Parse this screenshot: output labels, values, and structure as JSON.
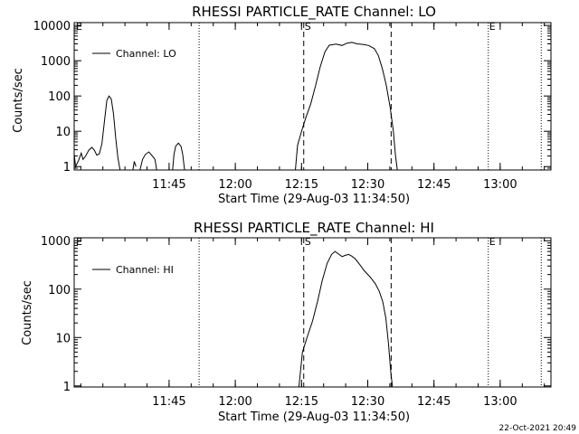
{
  "chart_data": [
    {
      "type": "line",
      "id": "lo",
      "title": "RHESSI PARTICLE_RATE Channel: LO",
      "xlabel": "Start Time (29-Aug-03 11:34:50)",
      "ylabel": "Counts/sec",
      "yscale": "log",
      "ylim": [
        0.8,
        12000
      ],
      "xlim_min": [
        -11.3,
        96.7
      ],
      "x_ticks": [
        {
          "m": 10.2,
          "label": "11:45"
        },
        {
          "m": 25.2,
          "label": "12:00"
        },
        {
          "m": 40.2,
          "label": "12:15"
        },
        {
          "m": 55.2,
          "label": "12:30"
        },
        {
          "m": 70.2,
          "label": "12:45"
        },
        {
          "m": 85.2,
          "label": "13:00"
        }
      ],
      "y_ticks": [
        {
          "v": 1,
          "label": "1"
        },
        {
          "v": 10,
          "label": "10"
        },
        {
          "v": 100,
          "label": "100"
        },
        {
          "v": 1000,
          "label": "1000"
        },
        {
          "v": 10000,
          "label": "10000"
        }
      ],
      "legend": "Channel: LO",
      "markers": [
        {
          "m": -11.3,
          "label": "E"
        },
        {
          "m": 40.7,
          "label": "S"
        },
        {
          "m": 82.5,
          "label": "E"
        }
      ],
      "dotted_lines": [
        17.0,
        82.5,
        94.5
      ],
      "dashed_lines": [
        40.7,
        60.5
      ],
      "series": [
        {
          "name": "Channel: LO",
          "segments": [
            [
              [
                -11.3,
                2.3
              ],
              [
                -11.0,
                1.0
              ],
              [
                -10.3,
                1.5
              ],
              [
                -9.7,
                2.4
              ],
              [
                -9.3,
                1.6
              ],
              [
                -8.7,
                2.0
              ],
              [
                -8.0,
                2.9
              ],
              [
                -7.3,
                3.5
              ],
              [
                -6.7,
                2.9
              ],
              [
                -6.2,
                2.1
              ],
              [
                -5.6,
                2.3
              ],
              [
                -5.0,
                4.5
              ],
              [
                -4.4,
                22
              ],
              [
                -3.9,
                75
              ],
              [
                -3.4,
                100
              ],
              [
                -2.9,
                82
              ],
              [
                -2.4,
                32
              ],
              [
                -1.9,
                6.5
              ],
              [
                -1.4,
                1.8
              ],
              [
                -0.9,
                0.8
              ]
            ],
            [
              [
                2.0,
                0.8
              ],
              [
                2.3,
                1.4
              ],
              [
                2.7,
                1.0
              ]
            ],
            [
              [
                3.6,
                0.8
              ],
              [
                4.2,
                1.6
              ],
              [
                4.8,
                2.2
              ],
              [
                5.6,
                2.6
              ],
              [
                6.4,
                2.0
              ],
              [
                7.0,
                1.6
              ],
              [
                7.4,
                0.8
              ]
            ],
            [
              [
                11.0,
                0.8
              ],
              [
                11.3,
                2.2
              ],
              [
                11.7,
                3.8
              ],
              [
                12.3,
                4.6
              ],
              [
                12.9,
                3.7
              ],
              [
                13.3,
                2.2
              ],
              [
                13.7,
                0.8
              ]
            ],
            [
              [
                38.8,
                0.8
              ],
              [
                39.3,
                4.0
              ],
              [
                40.3,
                11.0
              ],
              [
                41.2,
                25
              ],
              [
                42.3,
                60
              ],
              [
                43.4,
                200
              ],
              [
                44.4,
                650
              ],
              [
                45.5,
                1800
              ],
              [
                46.5,
                2750
              ],
              [
                48.0,
                2950
              ],
              [
                49.4,
                2700
              ],
              [
                50.5,
                3150
              ],
              [
                51.6,
                3300
              ],
              [
                52.8,
                3000
              ],
              [
                54.1,
                2900
              ],
              [
                55.4,
                2700
              ],
              [
                56.7,
                2200
              ],
              [
                57.6,
                1400
              ],
              [
                58.5,
                600
              ],
              [
                59.4,
                200
              ],
              [
                60.3,
                45
              ],
              [
                61.0,
                10
              ],
              [
                61.5,
                2.0
              ],
              [
                61.9,
                0.8
              ]
            ]
          ]
        }
      ]
    },
    {
      "type": "line",
      "id": "hi",
      "title": "RHESSI PARTICLE_RATE Channel: HI",
      "xlabel": "Start Time (29-Aug-03 11:34:50)",
      "ylabel": "Counts/sec",
      "yscale": "log",
      "ylim": [
        0.95,
        1150
      ],
      "xlim_min": [
        -11.3,
        96.7
      ],
      "x_ticks": [
        {
          "m": 10.2,
          "label": "11:45"
        },
        {
          "m": 25.2,
          "label": "12:00"
        },
        {
          "m": 40.2,
          "label": "12:15"
        },
        {
          "m": 55.2,
          "label": "12:30"
        },
        {
          "m": 70.2,
          "label": "12:45"
        },
        {
          "m": 85.2,
          "label": "13:00"
        }
      ],
      "y_ticks": [
        {
          "v": 1,
          "label": "1"
        },
        {
          "v": 10,
          "label": "10"
        },
        {
          "v": 100,
          "label": "100"
        },
        {
          "v": 1000,
          "label": "1000"
        }
      ],
      "legend": "Channel: HI",
      "markers": [
        {
          "m": -11.3,
          "label": "E"
        },
        {
          "m": 40.7,
          "label": "S"
        },
        {
          "m": 82.5,
          "label": "E"
        }
      ],
      "dotted_lines": [
        17.0,
        82.5,
        94.5
      ],
      "dashed_lines": [
        40.7,
        60.5
      ],
      "series": [
        {
          "name": "Channel: HI",
          "segments": [
            [
              [
                39.6,
                0.9
              ],
              [
                40.4,
                5.0
              ],
              [
                41.6,
                11
              ],
              [
                42.7,
                22
              ],
              [
                43.8,
                55
              ],
              [
                44.9,
                150
              ],
              [
                46.0,
                340
              ],
              [
                47.0,
                520
              ],
              [
                47.8,
                600
              ],
              [
                48.6,
                530
              ],
              [
                49.4,
                470
              ],
              [
                50.1,
                500
              ],
              [
                50.9,
                520
              ],
              [
                51.6,
                480
              ],
              [
                52.4,
                420
              ],
              [
                53.4,
                320
              ],
              [
                54.4,
                240
              ],
              [
                55.7,
                180
              ],
              [
                56.9,
                130
              ],
              [
                57.8,
                90
              ],
              [
                58.6,
                55
              ],
              [
                59.3,
                25
              ],
              [
                59.9,
                7.5
              ],
              [
                60.4,
                2.0
              ],
              [
                60.8,
                0.9
              ]
            ]
          ]
        }
      ]
    }
  ],
  "timestamp": "22-Oct-2021 20:49"
}
